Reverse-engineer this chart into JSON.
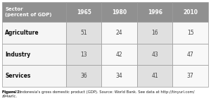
{
  "header_row": [
    "Sector\n(percent of GDP)",
    "1965",
    "1980",
    "1996",
    "2010"
  ],
  "rows": [
    [
      "Agriculture",
      "51",
      "24",
      "16",
      "15"
    ],
    [
      "Industry",
      "13",
      "42",
      "43",
      "47"
    ],
    [
      "Services",
      "36",
      "34",
      "41",
      "37"
    ]
  ],
  "caption": "Figure 2: Indonesia's gross domestic product (GDP). Source: World Bank. See data at http://tinyurl.com/\nz94wrlc.",
  "header_bg": "#909090",
  "header_text_color": "#ffffff",
  "row_label_bg": "#f5f5f5",
  "cell_bg_light": "#e0e0e0",
  "cell_bg_white": "#f8f8f8",
  "border_color": "#999999",
  "row_label_text_color": "#111111",
  "cell_text_color": "#444444",
  "caption_bold": "Figure 2:",
  "caption_rest": " Indonesia's gross domestic product (GDP). Source: World Bank. See data at http://tinyurl.com/z94wrlc.",
  "fig_width": 3.0,
  "fig_height": 1.53,
  "dpi": 100
}
